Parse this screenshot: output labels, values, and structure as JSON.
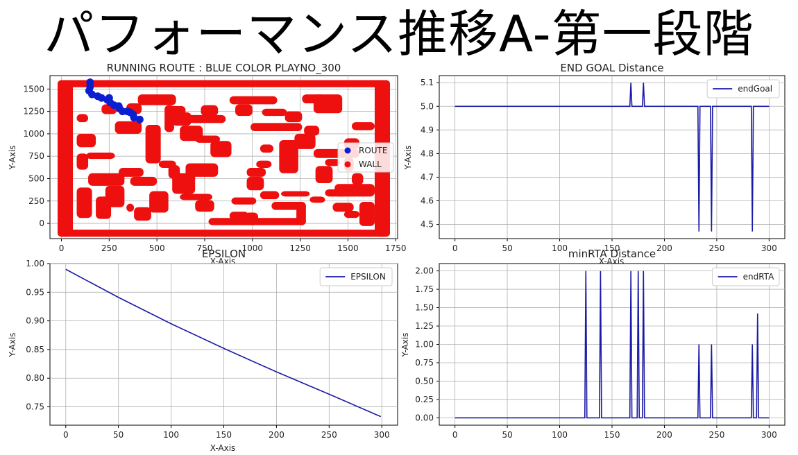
{
  "page": {
    "title": "パフォーマンス推移A-第一段階"
  },
  "chart_data": [
    {
      "type": "scatter",
      "title": "RUNNING ROUTE : BLUE COLOR PLAYNO_300",
      "xlabel": "X-Axis",
      "ylabel": "Y-Axis",
      "xlim": [
        -60,
        1760
      ],
      "ylim": [
        -170,
        1650
      ],
      "xticks": [
        0,
        250,
        500,
        750,
        1000,
        1250,
        1500,
        1750
      ],
      "yticks": [
        0,
        250,
        500,
        750,
        1000,
        1250,
        1500
      ],
      "grid": true,
      "legend": "center-right",
      "series": [
        {
          "name": "ROUTE",
          "color": "#0b1fd0",
          "points": [
            [
              150,
              1575
            ],
            [
              150,
              1525
            ],
            [
              145,
              1480
            ],
            [
              160,
              1440
            ],
            [
              190,
              1420
            ],
            [
              210,
              1400
            ],
            [
              240,
              1380
            ],
            [
              250,
              1400
            ],
            [
              255,
              1350
            ],
            [
              275,
              1320
            ],
            [
              300,
              1310
            ],
            [
              305,
              1280
            ],
            [
              320,
              1250
            ],
            [
              345,
              1250
            ],
            [
              360,
              1240
            ],
            [
              375,
              1215
            ],
            [
              380,
              1180
            ],
            [
              410,
              1160
            ]
          ]
        },
        {
          "name": "WALL",
          "color": "#ee0f0f",
          "points": []
        }
      ]
    },
    {
      "type": "line",
      "title": "END GOAL Distance",
      "xlabel": "X-Axis",
      "ylabel": "Y-Axis",
      "xlim": [
        -15,
        315
      ],
      "ylim": [
        4.44,
        5.13
      ],
      "xticks": [
        0,
        50,
        100,
        150,
        200,
        250,
        300
      ],
      "yticks": [
        4.5,
        4.6,
        4.7,
        4.8,
        4.9,
        5.0,
        5.1
      ],
      "grid": true,
      "legend": "top-right",
      "series": [
        {
          "name": "endGoal",
          "color": "#1a1aa6",
          "x": [
            0,
            167,
            168,
            169,
            170,
            179,
            180,
            181,
            232,
            233,
            234,
            244,
            245,
            246,
            283,
            284,
            285,
            300
          ],
          "y": [
            5.0,
            5.0,
            5.1,
            5.0,
            5.0,
            5.0,
            5.1,
            5.0,
            5.0,
            4.47,
            5.0,
            5.0,
            4.47,
            5.0,
            5.0,
            4.47,
            5.0,
            5.0
          ]
        }
      ]
    },
    {
      "type": "line",
      "title": "EPSILON",
      "xlabel": "X-Axis",
      "ylabel": "Y-Axis",
      "xlim": [
        -15,
        315
      ],
      "ylim": [
        0.718,
        1.0
      ],
      "xticks": [
        0,
        50,
        100,
        150,
        200,
        250,
        300
      ],
      "yticks": [
        0.75,
        0.8,
        0.85,
        0.9,
        0.95,
        1.0
      ],
      "grid": true,
      "legend": "top-right",
      "series": [
        {
          "name": "EPSILON",
          "color": "#1a1aa6",
          "x": [
            0,
            50,
            100,
            150,
            200,
            250,
            299
          ],
          "y": [
            0.99,
            0.941,
            0.895,
            0.852,
            0.811,
            0.772,
            0.733
          ]
        }
      ]
    },
    {
      "type": "line",
      "title": "minRTA Distance",
      "xlabel": "",
      "ylabel": "Y-Axis",
      "xlim": [
        -15,
        315
      ],
      "ylim": [
        -0.1,
        2.1
      ],
      "xticks": [
        0,
        50,
        100,
        150,
        200,
        250,
        300
      ],
      "yticks": [
        0.0,
        0.25,
        0.5,
        0.75,
        1.0,
        1.25,
        1.5,
        1.75,
        2.0
      ],
      "grid": true,
      "legend": "top-right",
      "series": [
        {
          "name": "endRTA",
          "color": "#1a1aa6",
          "x": [
            0,
            124,
            125,
            126,
            138,
            139,
            140,
            167,
            168,
            169,
            174,
            175,
            176,
            179,
            180,
            181,
            232,
            233,
            234,
            244,
            245,
            246,
            283,
            284,
            285,
            288,
            289,
            290,
            300
          ],
          "y": [
            0,
            0,
            2,
            0,
            0,
            2,
            0,
            0,
            2,
            0,
            0,
            2,
            0,
            0,
            2,
            0,
            0,
            1,
            0,
            0,
            1,
            0,
            0,
            1,
            0,
            0,
            1.42,
            0,
            0
          ]
        }
      ]
    }
  ]
}
